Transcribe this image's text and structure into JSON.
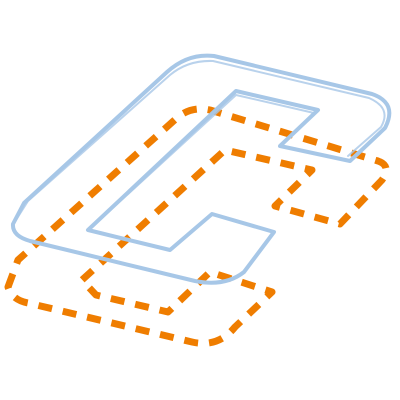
{
  "colors": {
    "background": "#ffffff",
    "top_outline": "#a7c7e7",
    "bottom_outline": "#ef7d00"
  },
  "icons": {
    "top_shape": "isometric-c-outline-icon",
    "bottom_shape": "isometric-c-dashed-outline-icon"
  }
}
